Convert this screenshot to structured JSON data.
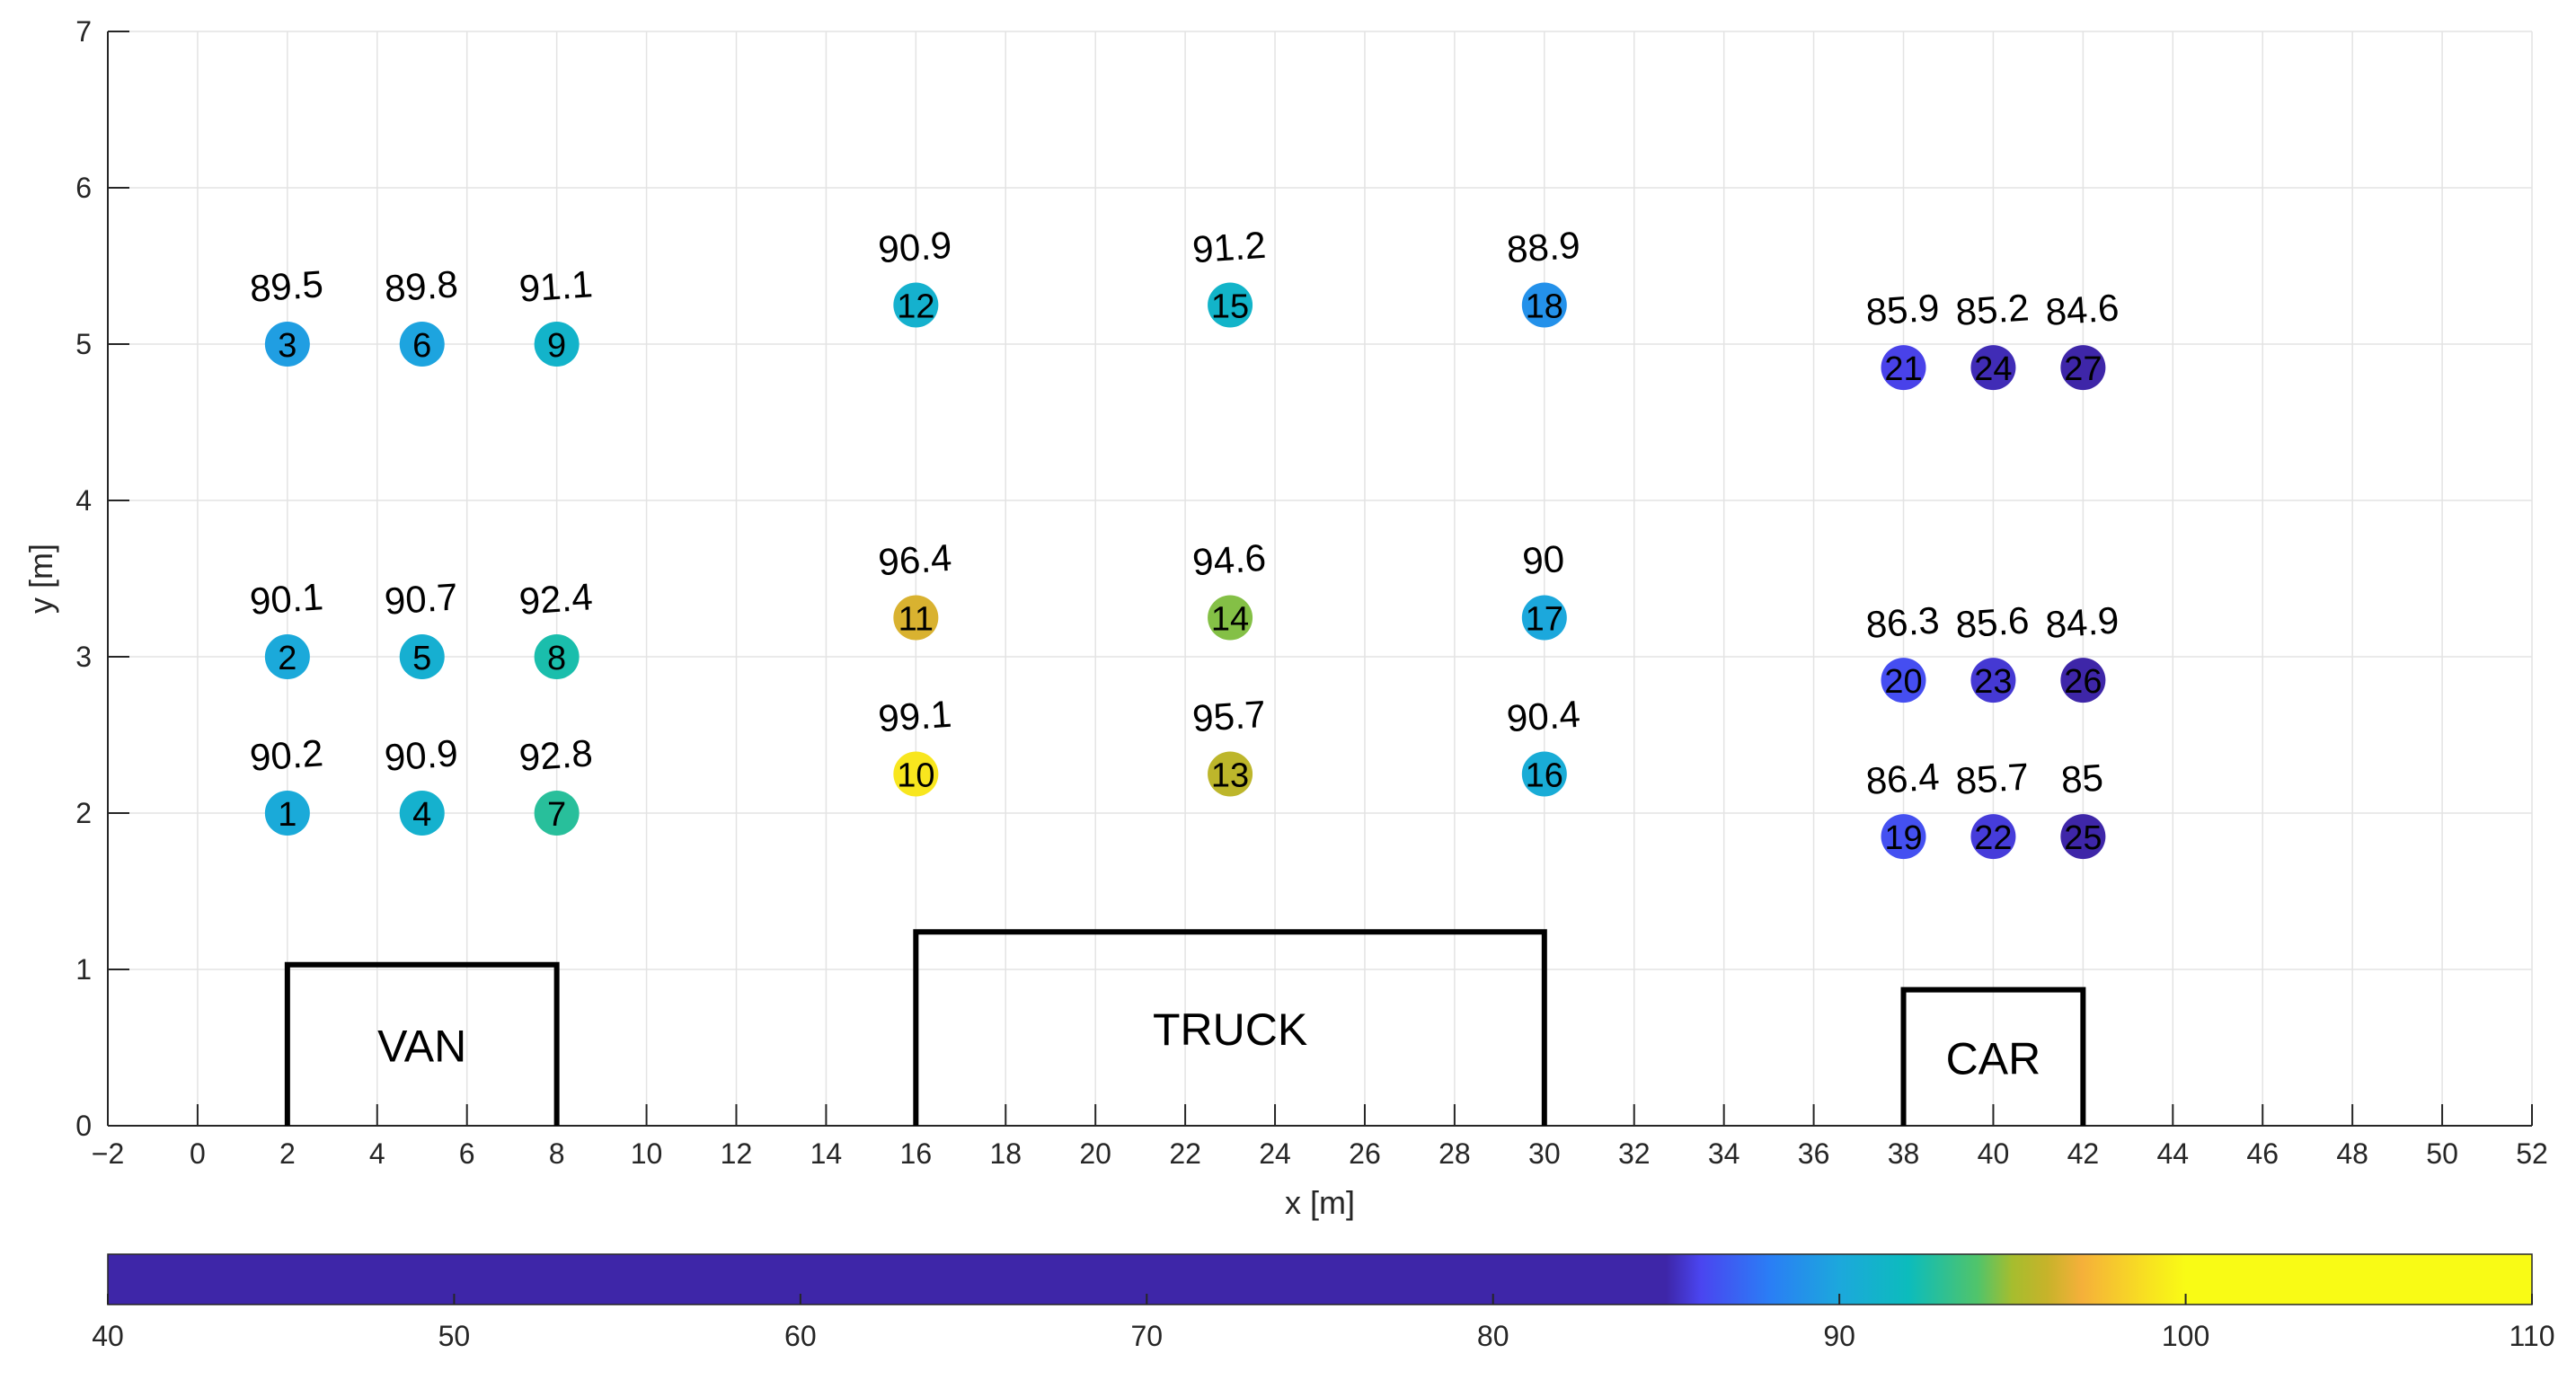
{
  "chart_data": {
    "type": "scatter",
    "title": "",
    "xlabel": "x [m]",
    "ylabel": "y [m]",
    "xlim": [
      -2,
      52
    ],
    "ylim": [
      0,
      7
    ],
    "xticks": [
      -2,
      0,
      2,
      4,
      6,
      8,
      10,
      12,
      14,
      16,
      18,
      20,
      22,
      24,
      26,
      28,
      30,
      32,
      34,
      36,
      38,
      40,
      42,
      44,
      46,
      48,
      50,
      52
    ],
    "yticks": [
      0,
      1,
      2,
      3,
      4,
      5,
      6,
      7
    ],
    "grid": true,
    "points": [
      {
        "id": "1",
        "x": 2,
        "y": 2,
        "value": "90.2"
      },
      {
        "id": "2",
        "x": 2,
        "y": 3,
        "value": "90.1"
      },
      {
        "id": "3",
        "x": 2,
        "y": 5,
        "value": "89.5"
      },
      {
        "id": "4",
        "x": 5,
        "y": 2,
        "value": "90.9"
      },
      {
        "id": "5",
        "x": 5,
        "y": 3,
        "value": "90.7"
      },
      {
        "id": "6",
        "x": 5,
        "y": 5,
        "value": "89.8"
      },
      {
        "id": "7",
        "x": 8,
        "y": 2,
        "value": "92.8"
      },
      {
        "id": "8",
        "x": 8,
        "y": 3,
        "value": "92.4"
      },
      {
        "id": "9",
        "x": 8,
        "y": 5,
        "value": "91.1"
      },
      {
        "id": "10",
        "x": 16,
        "y": 2.25,
        "value": "99.1"
      },
      {
        "id": "11",
        "x": 16,
        "y": 3.25,
        "value": "96.4"
      },
      {
        "id": "12",
        "x": 16,
        "y": 5.25,
        "value": "90.9"
      },
      {
        "id": "13",
        "x": 23,
        "y": 2.25,
        "value": "95.7"
      },
      {
        "id": "14",
        "x": 23,
        "y": 3.25,
        "value": "94.6"
      },
      {
        "id": "15",
        "x": 23,
        "y": 5.25,
        "value": "91.2"
      },
      {
        "id": "16",
        "x": 30,
        "y": 2.25,
        "value": "90.4"
      },
      {
        "id": "17",
        "x": 30,
        "y": 3.25,
        "value": "90"
      },
      {
        "id": "18",
        "x": 30,
        "y": 5.25,
        "value": "88.9"
      },
      {
        "id": "19",
        "x": 38,
        "y": 1.85,
        "value": "86.4"
      },
      {
        "id": "20",
        "x": 38,
        "y": 2.85,
        "value": "86.3"
      },
      {
        "id": "21",
        "x": 38,
        "y": 4.85,
        "value": "85.9"
      },
      {
        "id": "22",
        "x": 40,
        "y": 1.85,
        "value": "85.7"
      },
      {
        "id": "23",
        "x": 40,
        "y": 2.85,
        "value": "85.6"
      },
      {
        "id": "24",
        "x": 40,
        "y": 4.85,
        "value": "85.2"
      },
      {
        "id": "25",
        "x": 42,
        "y": 1.85,
        "value": "85"
      },
      {
        "id": "26",
        "x": 42,
        "y": 2.85,
        "value": "84.9"
      },
      {
        "id": "27",
        "x": 42,
        "y": 4.85,
        "value": "84.6"
      }
    ],
    "vehicles": [
      {
        "label": "VAN",
        "x0": 2,
        "x1": 8,
        "height": 1.03
      },
      {
        "label": "TRUCK",
        "x0": 16,
        "x1": 30,
        "height": 1.24
      },
      {
        "label": "CAR",
        "x0": 38,
        "x1": 42,
        "height": 0.87
      }
    ],
    "colorbar": {
      "range": [
        40,
        110
      ],
      "ticks": [
        40,
        50,
        60,
        70,
        80,
        90,
        100,
        110
      ],
      "stops": [
        {
          "value": 40,
          "color": "#3e26a8"
        },
        {
          "value": 85,
          "color": "#3e26a8"
        },
        {
          "value": 86,
          "color": "#4a45f0"
        },
        {
          "value": 88,
          "color": "#2a7ef5"
        },
        {
          "value": 90,
          "color": "#1ca8dc"
        },
        {
          "value": 92,
          "color": "#0cbcbc"
        },
        {
          "value": 94,
          "color": "#51c46a"
        },
        {
          "value": 95,
          "color": "#a6bd2e"
        },
        {
          "value": 96,
          "color": "#c7b32a"
        },
        {
          "value": 97,
          "color": "#f5b03a"
        },
        {
          "value": 99,
          "color": "#f8e41f"
        },
        {
          "value": 100,
          "color": "#f9fb15"
        },
        {
          "value": 110,
          "color": "#f9fb15"
        }
      ]
    }
  }
}
